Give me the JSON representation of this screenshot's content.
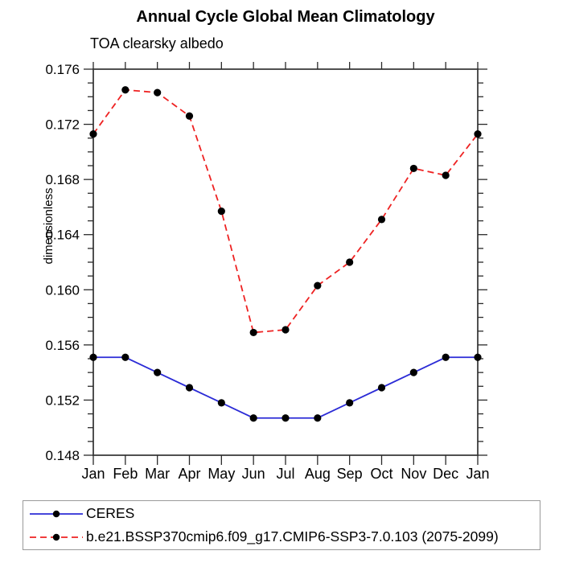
{
  "chart_data": {
    "type": "line",
    "title": "Annual Cycle Global Mean Climatology",
    "subtitle": "TOA clearsky albedo",
    "xlabel": "",
    "ylabel": "dimensionless",
    "categories": [
      "Jan",
      "Feb",
      "Mar",
      "Apr",
      "May",
      "Jun",
      "Jul",
      "Aug",
      "Sep",
      "Oct",
      "Nov",
      "Dec",
      "Jan"
    ],
    "series": [
      {
        "name": "CERES",
        "color": "#2b2bd6",
        "dash": "",
        "values": [
          0.1551,
          0.1551,
          0.154,
          0.1529,
          0.1518,
          0.1507,
          0.1507,
          0.1507,
          0.1518,
          0.1529,
          0.154,
          0.1551,
          0.1551
        ]
      },
      {
        "name": "b.e21.BSSP370cmip6.f09_g17.CMIP6-SSP3-7.0.103 (2075-2099)",
        "color": "#ee2222",
        "dash": "8,5",
        "values": [
          0.1713,
          0.1745,
          0.1743,
          0.1726,
          0.1657,
          0.1569,
          0.1571,
          0.1603,
          0.162,
          0.1651,
          0.1688,
          0.1683,
          0.1713
        ]
      }
    ],
    "ylim": [
      0.148,
      0.176
    ],
    "ytick_major": 0.004,
    "ytick_minor": 0.001,
    "ytick_label_decimals": 3,
    "marker": "filled-circle",
    "marker_color": "#000000",
    "axis_color": "#3c3c3c",
    "tick_color": "#2a2a2a",
    "grid": "off",
    "legend_position": "bottom-box"
  }
}
